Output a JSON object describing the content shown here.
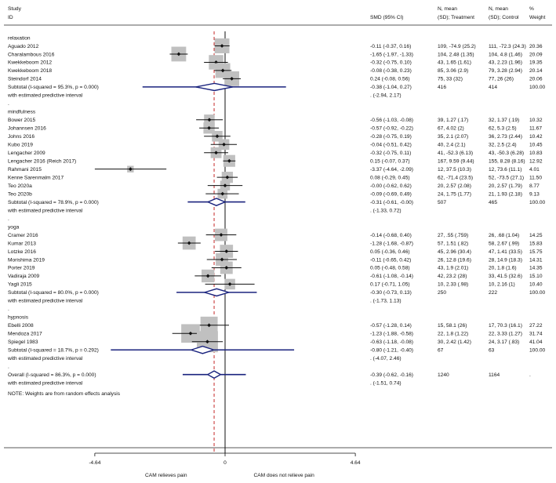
{
  "chart_data": {
    "type": "forest",
    "columns": {
      "study": "Study",
      "id": "ID",
      "smd": "SMD (95% CI)",
      "treat": "N, mean\n(SD); Treatment",
      "control": "N, mean\n(SD); Control",
      "weight": "%\nWeight"
    },
    "xaxis": {
      "min": -4.64,
      "max": 4.64,
      "ticks": [
        "-4.64",
        "0",
        "4.64"
      ],
      "left_label": "CAM relieves pain",
      "right_label": "CAM does not relieve pain"
    },
    "null_line": 0,
    "overall_line": -0.39,
    "rows": [
      {
        "kind": "header",
        "label": "relaxation"
      },
      {
        "kind": "study",
        "label": "Aguado 2012",
        "est": -0.11,
        "lo": -0.37,
        "hi": 0.16,
        "ci": "-0.11 (-0.37, 0.16)",
        "treat": "109, -74.9 (25.2)",
        "control": "111, -72.3 (24.3)",
        "weight": "20.36",
        "w": 20.36
      },
      {
        "kind": "study",
        "label": "Charalambous 2016",
        "est": -1.65,
        "lo": -1.97,
        "hi": -1.33,
        "ci": "-1.65 (-1.97, -1.33)",
        "treat": "104, 2.48 (1.35)",
        "control": "104, 4.8 (1.46)",
        "weight": "20.09",
        "w": 20.09
      },
      {
        "kind": "study",
        "label": "Kwekkeboom 2012",
        "est": -0.32,
        "lo": -0.75,
        "hi": 0.1,
        "ci": "-0.32 (-0.75, 0.10)",
        "treat": "43, 1.65 (1.61)",
        "control": "43, 2.23 (1.96)",
        "weight": "19.35",
        "w": 19.35
      },
      {
        "kind": "study",
        "label": "Kwekkeboom 2018",
        "est": -0.08,
        "lo": -0.38,
        "hi": 0.23,
        "ci": "-0.08 (-0.38, 0.23)",
        "treat": "85, 3.06 (2.9)",
        "control": "79, 3.28 (2.94)",
        "weight": "20.14",
        "w": 20.14
      },
      {
        "kind": "study",
        "label": "Steindorf 2014",
        "est": 0.24,
        "lo": -0.08,
        "hi": 0.56,
        "ci": "0.24 (-0.08, 0.56)",
        "treat": "75, 33 (32)",
        "control": "77, 26 (26)",
        "weight": "20.06",
        "w": 20.06
      },
      {
        "kind": "subtotal",
        "label": "Subtotal  (I-squared = 95.3%, p = 0.000)",
        "est": -0.38,
        "lo": -1.04,
        "hi": 0.27,
        "ci": "-0.38 (-1.04, 0.27)",
        "treat": "416",
        "control": "414",
        "weight": "100.00",
        "pi_lo": -2.94,
        "pi_hi": 2.17
      },
      {
        "kind": "predictive",
        "label": "with estimated predictive interval",
        "ci": ".   (-2.94, 2.17)"
      },
      {
        "kind": "dot",
        "label": "."
      },
      {
        "kind": "header",
        "label": "mindfulness"
      },
      {
        "kind": "study",
        "label": "Bower 2015",
        "est": -0.56,
        "lo": -1.03,
        "hi": -0.08,
        "ci": "-0.56 (-1.03, -0.08)",
        "treat": "39, 1.27 (.17)",
        "control": "32, 1.37 (.19)",
        "weight": "10.32",
        "w": 10.32
      },
      {
        "kind": "study",
        "label": "Johannsen 2016",
        "est": -0.57,
        "lo": -0.92,
        "hi": -0.22,
        "ci": "-0.57 (-0.92, -0.22)",
        "treat": "67, 4.02 (2)",
        "control": "62, 5.3 (2.5)",
        "weight": "11.67",
        "w": 11.67
      },
      {
        "kind": "study",
        "label": "Johns 2016",
        "est": -0.28,
        "lo": -0.75,
        "hi": 0.19,
        "ci": "-0.28 (-0.75, 0.19)",
        "treat": "35, 2.1 (2.07)",
        "control": "36, 2.73 (2.44)",
        "weight": "10.42",
        "w": 10.42
      },
      {
        "kind": "study",
        "label": "Kubo 2019",
        "est": -0.04,
        "lo": -0.51,
        "hi": 0.42,
        "ci": "-0.04 (-0.51, 0.42)",
        "treat": "40, 2.4 (2.1)",
        "control": "32, 2.5 (2.4)",
        "weight": "10.45",
        "w": 10.45
      },
      {
        "kind": "study",
        "label": "Lengacher 2009",
        "est": -0.32,
        "lo": -0.75,
        "hi": 0.11,
        "ci": "-0.32 (-0.75, 0.11)",
        "treat": "41, -52.3 (6.13)",
        "control": "43, -50.3 (6.28)",
        "weight": "10.83",
        "w": 10.83
      },
      {
        "kind": "study",
        "label": "Lengacher 2016 (Reich 2017)",
        "est": 0.15,
        "lo": -0.07,
        "hi": 0.37,
        "ci": "0.15 (-0.07, 0.37)",
        "treat": "167, 9.59 (9.44)",
        "control": "155, 8.28 (8.16)",
        "weight": "12.92",
        "w": 12.92
      },
      {
        "kind": "study",
        "label": "Rahmani 2015",
        "est": -3.37,
        "lo": -4.64,
        "hi": -2.09,
        "ci": "-3.37 (-4.64, -2.09)",
        "treat": "12, 37.5 (10.3)",
        "control": "12, 73.6 (11.1)",
        "weight": "4.01",
        "w": 4.01
      },
      {
        "kind": "study",
        "label": "Kenne Sarenmalm 2017",
        "est": 0.08,
        "lo": -0.29,
        "hi": 0.45,
        "ci": "0.08 (-0.29, 0.45)",
        "treat": "62, -71.4 (23.5)",
        "control": "52, -73.5 (27.1)",
        "weight": "11.50",
        "w": 11.5
      },
      {
        "kind": "study",
        "label": "Teo 2020a",
        "est": 0.0,
        "lo": -0.62,
        "hi": 0.62,
        "ci": "-0.00 (-0.62, 0.62)",
        "treat": "20, 2.57 (2.08)",
        "control": "20, 2.57 (1.79)",
        "weight": "8.77",
        "w": 8.77
      },
      {
        "kind": "study",
        "label": "Teo 2020b",
        "est": -0.09,
        "lo": -0.69,
        "hi": 0.49,
        "ci": "-0.09 (-0.69, 0.49)",
        "treat": "24, 1.75 (1.77)",
        "control": "21, 1.93 (2.18)",
        "weight": "9.13",
        "w": 9.13
      },
      {
        "kind": "subtotal",
        "label": "Subtotal  (I-squared = 78.9%, p = 0.000)",
        "est": -0.31,
        "lo": -0.61,
        "hi": 0.0,
        "ci": "-0.31 (-0.61, -0.00)",
        "treat": "507",
        "control": "465",
        "weight": "100.00",
        "pi_lo": -1.33,
        "pi_hi": 0.72
      },
      {
        "kind": "predictive",
        "label": "with estimated predictive interval",
        "ci": ".   (-1.33, 0.72)"
      },
      {
        "kind": "dot",
        "label": "."
      },
      {
        "kind": "header",
        "label": "yoga"
      },
      {
        "kind": "study",
        "label": "Cramer 2016",
        "est": -0.14,
        "lo": -0.68,
        "hi": 0.4,
        "ci": "-0.14 (-0.68, 0.40)",
        "treat": "27, .55 (.759)",
        "control": "26, .68 (1.04)",
        "weight": "14.25",
        "w": 14.25
      },
      {
        "kind": "study",
        "label": "Kumar 2013",
        "est": -1.28,
        "lo": -1.68,
        "hi": -0.87,
        "ci": "-1.28 (-1.68, -0.87)",
        "treat": "57, 1.51 (.82)",
        "control": "58, 2.67 (.99)",
        "weight": "15.83",
        "w": 15.83
      },
      {
        "kind": "study",
        "label": "Lotzke 2016",
        "est": 0.05,
        "lo": -0.36,
        "hi": 0.46,
        "ci": "0.05 (-0.36, 0.46)",
        "treat": "45, 2.96 (30.4)",
        "control": "47, 1.41 (33.5)",
        "weight": "15.75",
        "w": 15.75
      },
      {
        "kind": "study",
        "label": "Morishima 2019",
        "est": -0.11,
        "lo": -0.65,
        "hi": 0.42,
        "ci": "-0.11 (-0.65, 0.42)",
        "treat": "26, 12.8 (19.6)",
        "control": "28, 14.9 (18.3)",
        "weight": "14.31",
        "w": 14.31
      },
      {
        "kind": "study",
        "label": "Porter 2019",
        "est": 0.05,
        "lo": -0.48,
        "hi": 0.58,
        "ci": "0.05 (-0.48, 0.58)",
        "treat": "43, 1.9 (2.01)",
        "control": "20, 1.8 (1.6)",
        "weight": "14.35",
        "w": 14.35
      },
      {
        "kind": "study",
        "label": "Vadiraja 2009",
        "est": -0.61,
        "lo": -1.08,
        "hi": -0.14,
        "ci": "-0.61 (-1.08, -0.14)",
        "treat": "42, 23.2 (28)",
        "control": "33, 41.5 (32.6)",
        "weight": "15.10",
        "w": 15.1
      },
      {
        "kind": "study",
        "label": "Yagli 2015",
        "est": 0.17,
        "lo": -0.71,
        "hi": 1.05,
        "ci": "0.17 (-0.71, 1.05)",
        "treat": "10, 2.33 (.98)",
        "control": "10, 2.16 (1)",
        "weight": "10.40",
        "w": 10.4
      },
      {
        "kind": "subtotal",
        "label": "Subtotal  (I-squared = 80.0%, p = 0.000)",
        "est": -0.3,
        "lo": -0.73,
        "hi": 0.13,
        "ci": "-0.30 (-0.73, 0.13)",
        "treat": "250",
        "control": "222",
        "weight": "100.00",
        "pi_lo": -1.73,
        "pi_hi": 1.13
      },
      {
        "kind": "predictive",
        "label": "with estimated predictive interval",
        "ci": ".   (-1.73, 1.13)"
      },
      {
        "kind": "dot",
        "label": "."
      },
      {
        "kind": "header",
        "label": "hypnosis"
      },
      {
        "kind": "study",
        "label": "Ebelli 2008",
        "est": -0.57,
        "lo": -1.28,
        "hi": 0.14,
        "ci": "-0.57 (-1.28, 0.14)",
        "treat": "15, 58.1 (26)",
        "control": "17, 70.3 (16.1)",
        "weight": "27.22",
        "w": 27.22
      },
      {
        "kind": "study",
        "label": "Mendoza 2017",
        "est": -1.23,
        "lo": -1.88,
        "hi": -0.58,
        "ci": "-1.23 (-1.88, -0.58)",
        "treat": "22, 1.8 (1.22)",
        "control": "22, 3.33 (1.27)",
        "weight": "31.74",
        "w": 31.74
      },
      {
        "kind": "study",
        "label": "Spiegel 1983",
        "est": -0.63,
        "lo": -1.18,
        "hi": -0.08,
        "ci": "-0.63 (-1.18, -0.08)",
        "treat": "30, 2.42 (1.42)",
        "control": "24, 3.17 (.83)",
        "weight": "41.04",
        "w": 41.04
      },
      {
        "kind": "subtotal",
        "label": "Subtotal  (I-squared = 18.7%, p = 0.292)",
        "est": -0.8,
        "lo": -1.21,
        "hi": -0.4,
        "ci": "-0.80 (-1.21, -0.40)",
        "treat": "67",
        "control": "63",
        "weight": "100.00",
        "pi_lo": -4.07,
        "pi_hi": 2.46
      },
      {
        "kind": "predictive",
        "label": "with estimated predictive interval",
        "ci": ".   (-4.07, 2.46)"
      },
      {
        "kind": "dot",
        "label": "."
      },
      {
        "kind": "subtotal",
        "label": "Overall  (I-squared = 86.3%, p = 0.000)",
        "est": -0.39,
        "lo": -0.62,
        "hi": -0.16,
        "ci": "-0.39 (-0.62, -0.16)",
        "treat": "1240",
        "control": "1164",
        "weight": ".",
        "pi_lo": -1.51,
        "pi_hi": 0.74
      },
      {
        "kind": "predictive",
        "label": "with estimated predictive interval",
        "ci": ".   (-1.51, 0.74)"
      }
    ],
    "note": "NOTE: Weights are from random effects analysis"
  }
}
